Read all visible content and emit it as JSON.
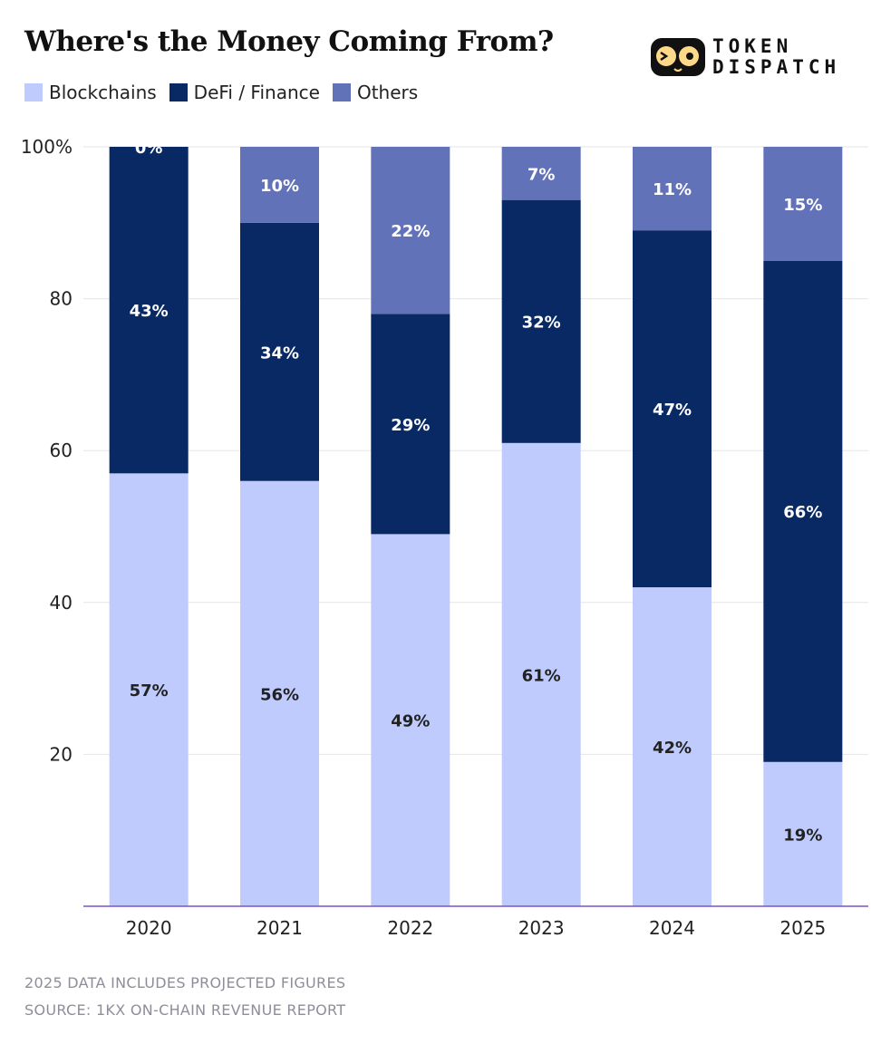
{
  "title": "Where's the Money Coming From?",
  "brand": {
    "line1": "TOKEN",
    "line2": "DISPATCH"
  },
  "footnotes": {
    "note": "2025 DATA INCLUDES PROJECTED FIGURES",
    "source": "SOURCE: 1KX ON-CHAIN REVENUE REPORT"
  },
  "colors": {
    "blockchains": "#bfcbfd",
    "defi": "#082964",
    "others": "#6272b9",
    "axis": "#7b54c9",
    "grid": "#e6e6e6"
  },
  "chart_data": {
    "type": "bar",
    "stacked": true,
    "title": "Where's the Money Coming From?",
    "categories": [
      "2020",
      "2021",
      "2022",
      "2023",
      "2024",
      "2025"
    ],
    "series": [
      {
        "name": "Blockchains",
        "values": [
          57,
          56,
          49,
          61,
          42,
          19
        ],
        "labels": [
          "57%",
          "56%",
          "49%",
          "61%",
          "42%",
          "19%"
        ]
      },
      {
        "name": "DeFi / Finance",
        "values": [
          43,
          34,
          29,
          32,
          47,
          66
        ],
        "labels": [
          "43%",
          "34%",
          "29%",
          "32%",
          "47%",
          "66%"
        ]
      },
      {
        "name": "Others",
        "values": [
          0,
          10,
          22,
          7,
          11,
          15
        ],
        "labels": [
          "0%",
          "10%",
          "22%",
          "7%",
          "11%",
          "15%"
        ]
      }
    ],
    "ylim": [
      0,
      100
    ],
    "yticks": [
      20,
      40,
      60,
      80,
      100
    ],
    "ytick_labels": [
      "20",
      "40",
      "60",
      "80",
      "100%"
    ],
    "grid": true,
    "legend": "top-left",
    "xlabel": "",
    "ylabel": ""
  }
}
